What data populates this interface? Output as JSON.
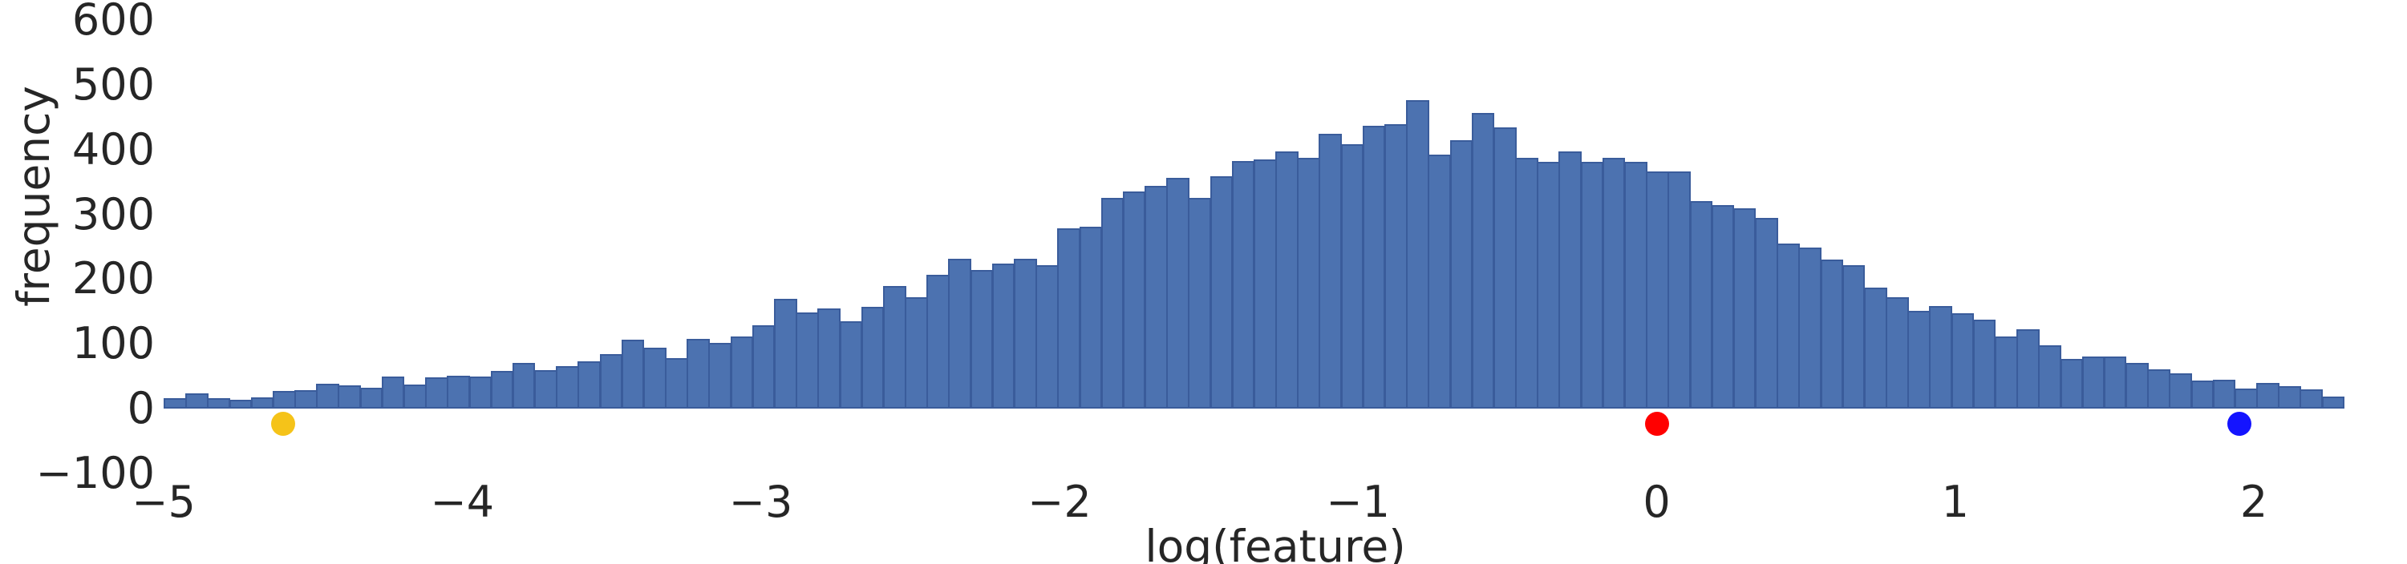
{
  "chart_data": {
    "type": "bar",
    "subtype": "histogram",
    "title": "",
    "xlabel": "log(feature)",
    "ylabel": "frequency",
    "grid": false,
    "legend": "none",
    "xlim": [
      -5.05,
      2.45
    ],
    "ylim": [
      -130,
      630
    ],
    "x_ticks": [
      -5,
      -4,
      -3,
      -2,
      -1,
      0,
      1,
      2
    ],
    "x_tick_labels": [
      "−5",
      "−4",
      "−3",
      "−2",
      "−1",
      "0",
      "1",
      "2"
    ],
    "y_ticks": [
      -100,
      0,
      100,
      200,
      300,
      400,
      500,
      600
    ],
    "y_tick_labels": [
      "−100",
      "0",
      "100",
      "200",
      "300",
      "400",
      "500",
      "600"
    ],
    "bar_color": "#4C72B0",
    "bar_edge_color": "#3A5C9B",
    "bin_start": -5.0,
    "bin_width": 0.073,
    "frequencies": [
      16,
      24,
      16,
      14,
      18,
      27,
      29,
      39,
      36,
      32,
      49,
      37,
      48,
      51,
      49,
      58,
      70,
      60,
      66,
      73,
      84,
      107,
      94,
      78,
      108,
      101,
      111,
      129,
      170,
      148,
      155,
      135,
      157,
      190,
      172,
      207,
      231,
      214,
      224,
      232,
      221,
      278,
      281,
      325,
      335,
      344,
      356,
      325,
      359,
      382,
      385,
      397,
      388,
      424,
      408,
      437,
      440,
      477,
      392,
      415,
      457,
      434,
      387,
      381,
      397,
      381,
      387,
      381,
      367,
      367,
      321,
      315,
      310,
      294,
      255,
      249,
      230,
      221,
      187,
      172,
      151,
      159,
      147,
      138,
      111,
      123,
      98,
      77,
      81,
      80,
      71,
      61,
      54,
      43,
      45,
      31,
      40,
      35,
      30,
      19
    ],
    "markers": [
      {
        "name": "yellow-marker",
        "x": -4.6,
        "y": -23,
        "color": "#F5C319"
      },
      {
        "name": "red-marker",
        "x": 0.0,
        "y": -23,
        "color": "#FF0000"
      },
      {
        "name": "blue-marker",
        "x": 1.95,
        "y": -23,
        "color": "#1414FF"
      }
    ]
  }
}
